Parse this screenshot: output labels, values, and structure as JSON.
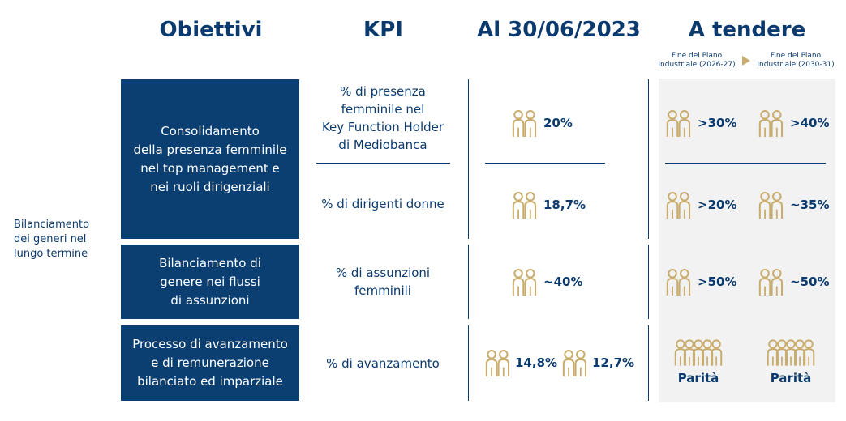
{
  "headers": {
    "obiettivi": "Obiettivi",
    "kpi": "KPI",
    "al": "Al 30/06/2023",
    "tendere": "A tendere"
  },
  "subheaders": {
    "left": "Fine del Piano\nIndustriale (2026-27)",
    "right": "Fine del Piano\nIndustriale (2030-31)"
  },
  "side_label": "Bilanciamento dei generi nel lungo termine",
  "rows": [
    {
      "objective": "Consolidamento\ndella presenza femminile\nnel top management e\nnei ruoli dirigenziali",
      "kpis": [
        {
          "label": "% di presenza\nfemminile nel\nKey Function Holder\ndi Mediobanca",
          "current": "20%",
          "target_2027": ">30%",
          "target_2031": ">40%"
        },
        {
          "label": "% di dirigenti donne",
          "current": "18,7%",
          "target_2027": ">20%",
          "target_2031": "~35%"
        }
      ]
    },
    {
      "objective": "Bilanciamento di\ngenere nei flussi\ndi assunzioni",
      "kpis": [
        {
          "label": "% di assunzioni\nfemminili",
          "current": "~40%",
          "target_2027": ">50%",
          "target_2031": "~50%"
        }
      ]
    },
    {
      "objective": "Processo di avanzamento\ne di remunerazione\nbilanciato ed imparziale",
      "kpis": [
        {
          "label": "% di avanzamento",
          "current_a": "14,8%",
          "current_b": "12,7%",
          "target_2027": "Parità",
          "target_2031": "Parità"
        }
      ]
    }
  ],
  "icons": {
    "pair": "two-people-icon",
    "group": "group-of-people-icon"
  },
  "colors": {
    "navy": "#0b3f72",
    "text": "#0b3a6e",
    "gold": "#c9ad6e",
    "grey_panel": "#f2f2f2"
  }
}
